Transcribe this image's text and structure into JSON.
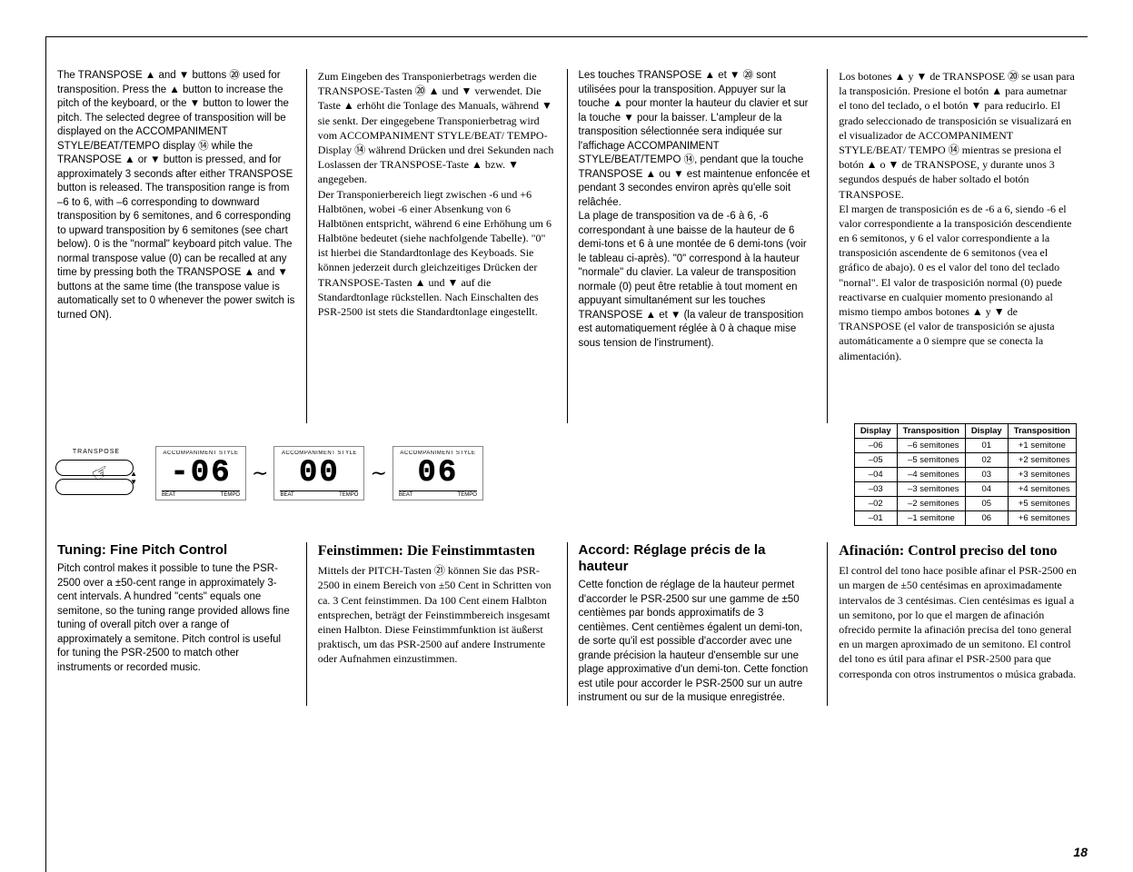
{
  "pageNumber": "18",
  "section1": {
    "en": "The TRANSPOSE ▲ and ▼ buttons ⑳ used for transposition. Press the ▲ button to increase the pitch of the keyboard, or the ▼ button to lower the pitch. The selected degree of transposition will be displayed on the ACCOMPANIMENT STYLE/BEAT/TEMPO display ⑭ while the TRANSPOSE ▲ or ▼ button is pressed, and for approximately 3 seconds after either TRANSPOSE button is released. The transposition range is from –6 to 6, with –6 corresponding to downward transposition by 6 semitones, and 6 corresponding to upward transposition by 6 semitones (see chart below). 0 is the \"normal\" keyboard pitch value. The normal transpose value (0) can be recalled at any time by pressing both the TRANSPOSE ▲ and ▼ buttons at the same time (the transpose value is automatically set to 0 whenever the power switch is turned ON).",
    "de": "Zum Eingeben des Transponierbetrags werden die TRANSPOSE-Tasten ⑳ ▲ und ▼ verwendet. Die Taste ▲ erhöht die Tonlage des Manuals, während ▼ sie senkt. Der eingegebene Transponierbetrag wird vom ACCOMPANIMENT STYLE/BEAT/ TEMPO-Display ⑭ während Drücken und drei Sekunden nach Loslassen der TRANSPOSE-Taste ▲ bzw. ▼ angegeben.\nDer Transponierbereich liegt zwischen -6 und +6 Halbtönen, wobei -6 einer Absenkung von 6 Halbtönen entspricht, während 6 eine Erhöhung um 6 Halbtöne bedeutet (siehe nachfolgende Tabelle). \"0\" ist hierbei die Standardtonlage des Keyboads. Sie können jederzeit durch gleichzeitiges Drücken der TRANSPOSE-Tasten ▲ und ▼ auf die Standardtonlage rückstellen. Nach Einschalten des PSR-2500 ist stets die Standardtonlage eingestellt.",
    "fr": "Les touches TRANSPOSE ▲ et ▼ ⑳ sont utilisées pour la transposition. Appuyer sur la touche ▲ pour monter la hauteur du clavier et sur la touche ▼ pour la baisser. L'ampleur de la transposition sélectionnée sera indiquée sur l'affichage ACCOMPANIMENT STYLE/BEAT/TEMPO ⑭, pendant que la touche TRANSPOSE ▲ ou ▼ est maintenue enfoncée et pendant 3 secondes environ après qu'elle soit relâchée.\nLa plage de transposition va de -6 à 6, -6 correspondant à une baisse de la hauteur de 6 demi-tons et 6 à une montée de 6 demi-tons (voir le tableau ci-après). \"0\" correspond à la hauteur \"normale\" du clavier. La valeur de transposition normale (0) peut être retablie à tout moment en appuyant simultanément sur les touches TRANSPOSE ▲ et ▼ (la valeur de transposition est automatiquement réglée à 0 à chaque mise sous tension de l'instrument).",
    "es": "Los botones ▲ y ▼ de TRANSPOSE ⑳ se usan para la transposición. Presione el botón ▲ para aumetnar el tono del teclado, o el botón ▼ para reducirlo. El grado seleccionado de transposición se visualizará en el visualizador de ACCOMPANIMENT STYLE/BEAT/ TEMPO ⑭ mientras se presiona el botón ▲ o ▼ de TRANSPOSE, y durante unos 3 segundos después de haber soltado el botón TRANSPOSE.\nEl margen de transposición es de -6 a 6, siendo -6 el valor correspondiente a la transposición descendiente en 6 semitonos, y 6 el valor correspondiente a la transposición ascendente de 6 semitonos (vea el gráfico de abajo). 0 es el valor del tono del teclado \"nornal\". El valor de trasposición normal (0) puede reactivarse en cualquier momento presionando al mismo tiempo ambos botones ▲ y ▼ de TRANSPOSE (el valor de transposición se ajusta automáticamente a 0 siempre que se conecta la alimentación)."
  },
  "diagram": {
    "transposeLabel": "TRANSPOSE",
    "accompLabel": "ACCOMPANIMENT STYLE",
    "beat": "BEAT",
    "tempo": "TEMPO",
    "d1": "-06",
    "d2": "00",
    "d3": "06"
  },
  "table": {
    "headers": [
      "Display",
      "Transposition",
      "Display",
      "Transposition"
    ],
    "rows": [
      [
        "–06",
        "–6",
        "semitones",
        "01",
        "+1",
        "semitone"
      ],
      [
        "–05",
        "–5",
        "semitones",
        "02",
        "+2",
        "semitones"
      ],
      [
        "–04",
        "–4",
        "semitones",
        "03",
        "+3",
        "semitones"
      ],
      [
        "–03",
        "–3",
        "semitones",
        "04",
        "+4",
        "semitones"
      ],
      [
        "–02",
        "–2",
        "semitones",
        "05",
        "+5",
        "semitones"
      ],
      [
        "–01",
        "–1",
        "semitone",
        "06",
        "+6",
        "semitones"
      ]
    ]
  },
  "section2": {
    "en": {
      "h": "Tuning: Fine Pitch Control",
      "b": "Pitch control makes it possible to tune the PSR-2500 over a ±50-cent range in approximately 3-cent intervals. A hundred \"cents\" equals one semitone, so the tuning range provided allows fine tuning of overall pitch over a range of approximately a semitone. Pitch control is useful for tuning the PSR-2500 to match other instruments or recorded music."
    },
    "de": {
      "h": "Feinstimmen: Die Feinstimmtasten",
      "b": "Mittels der PITCH-Tasten ㉑ können Sie das PSR-2500 in einem Bereich von ±50 Cent in Schritten von ca. 3 Cent feinstimmen. Da 100 Cent einem Halbton entsprechen, beträgt der Feinstimmbereich insgesamt einen Halbton. Diese Feinstimmfunktion ist äußerst praktisch, um das PSR-2500 auf andere Instrumente oder Aufnahmen einzustimmen."
    },
    "fr": {
      "h": "Accord: Réglage précis de la hauteur",
      "b": "Cette fonction de réglage de la hauteur permet d'accorder le PSR-2500 sur une gamme de ±50 centièmes par bonds approximatifs de 3 centièmes. Cent centièmes égalent un demi-ton, de sorte qu'il est possible d'accorder avec une grande précision la hauteur d'ensemble sur une plage approximative d'un demi-ton. Cette fonction est utile pour accorder le PSR-2500 sur un autre instrument ou sur de la musique enregistrée."
    },
    "es": {
      "h": "Afinación: Control preciso del tono",
      "b": "El control del tono hace posible afinar el PSR-2500 en un margen de ±50 centésimas en aproximadamente intervalos de 3 centésimas. Cien centésimas es igual a un semitono, por lo que el margen de afinación ofrecido permite la afinación precisa del tono general en un margen aproximado de un semitono. El control del tono es útil para afinar el PSR-2500 para que corresponda con otros instrumentos o música grabada."
    }
  }
}
